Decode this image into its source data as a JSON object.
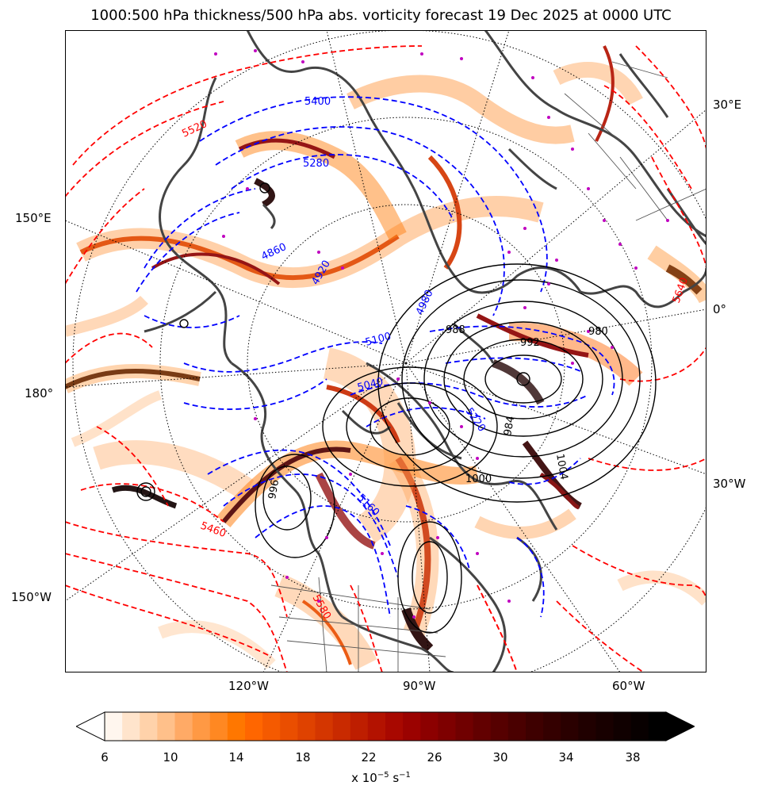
{
  "title": "1000:500 hPa thickness/500 hPa abs. vorticity forecast 19 Dec 2025 at 0000 UTC",
  "map": {
    "projection": "north-polar-stereographic",
    "longitude_labels_left": [
      "150°E",
      "180°",
      "150°W"
    ],
    "longitude_labels_right": [
      "30°E",
      "0°",
      "30°W"
    ],
    "longitude_labels_bottom": [
      "120°W",
      "90°W",
      "60°W"
    ],
    "thickness_labels_blue": [
      "5400",
      "5280",
      "4860",
      "4920",
      "4980",
      "5100",
      "5040",
      "5160",
      "5220"
    ],
    "thickness_labels_red": [
      "5520",
      "5460",
      "5580",
      "5640"
    ],
    "mslp_labels": [
      "988",
      "992",
      "984",
      "980",
      "996",
      "1000",
      "1004"
    ],
    "colors": {
      "thickness_cold": "#0000ff",
      "thickness_warm": "#ff0000",
      "mslp": "#000000",
      "coastline": "#444444",
      "markers": "#c000c0"
    }
  },
  "colorbar": {
    "units_prefix": "x 10",
    "units_exponent": "−5",
    "units_suffix": " s",
    "units_suffix_exponent": "−1",
    "tick_labels": [
      "6",
      "10",
      "14",
      "18",
      "22",
      "26",
      "30",
      "34",
      "38"
    ],
    "levels_min": 6,
    "levels_max": 39,
    "extend": "both",
    "colors": [
      "#fff6ee",
      "#ffe4cc",
      "#ffd2aa",
      "#ffc08a",
      "#ffaa66",
      "#ff9944",
      "#ff8822",
      "#ff7700",
      "#ff6600",
      "#f55a00",
      "#ea4e00",
      "#df4200",
      "#d43600",
      "#c92a00",
      "#be1e00",
      "#b31200",
      "#a80800",
      "#9b0200",
      "#8c0000",
      "#7e0000",
      "#700000",
      "#620000",
      "#560000",
      "#4a0000",
      "#3e0000",
      "#340000",
      "#2a0000",
      "#200000",
      "#180000",
      "#100000",
      "#080000",
      "#000000"
    ]
  }
}
